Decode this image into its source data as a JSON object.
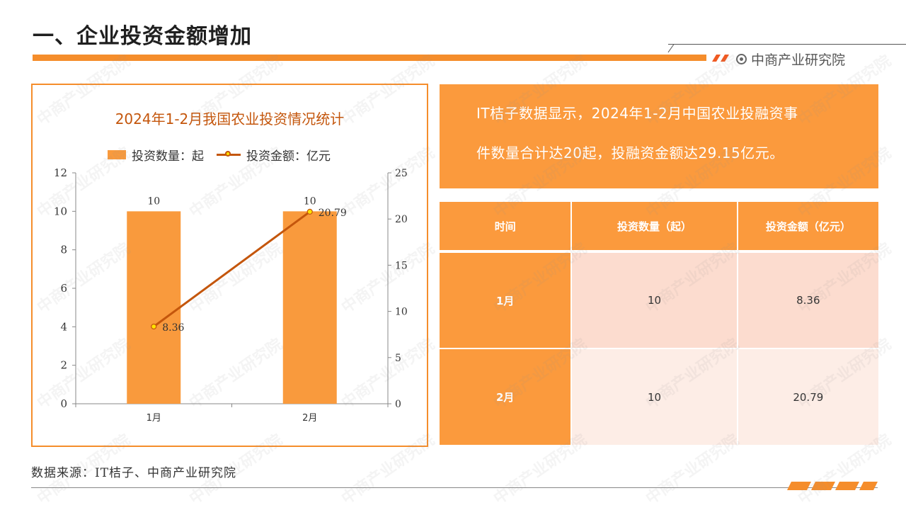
{
  "page": {
    "title": "一、企业投资金额增加",
    "brand": "中商产业研究院",
    "source": "数据来源：IT桔子、中商产业研究院"
  },
  "summary": {
    "line1": "IT桔子数据显示，2024年1-2月中国农业投融资事",
    "line2": "件数量合计达20起，投融资金额达29.15亿元。"
  },
  "table": {
    "headers": [
      "时间",
      "投资数量（起）",
      "投资金额（亿元）"
    ],
    "rows": [
      [
        "1月",
        "10",
        "8.36"
      ],
      [
        "2月",
        "10",
        "20.79"
      ]
    ]
  },
  "watermark": "中商产业研究院",
  "colors": {
    "accent": "#f58d2b",
    "bar": "#f99a3d",
    "line": "#c4560c",
    "marker": "#ffe400"
  },
  "chart_data": {
    "type": "bar+line",
    "title": "2024年1-2月我国农业投资情况统计",
    "categories": [
      "1月",
      "2月"
    ],
    "series": [
      {
        "name": "投资数量：起",
        "type": "bar",
        "axis": "left",
        "values": [
          10,
          10
        ],
        "labels": [
          "10",
          "10"
        ]
      },
      {
        "name": "投资金额：亿元",
        "type": "line",
        "axis": "right",
        "values": [
          8.36,
          20.79
        ],
        "labels": [
          "8.36",
          "20.79"
        ]
      }
    ],
    "left_axis": {
      "min": 0,
      "max": 12,
      "ticks": [
        0,
        2,
        4,
        6,
        8,
        10,
        12
      ]
    },
    "right_axis": {
      "min": 0,
      "max": 25,
      "ticks": [
        0,
        5,
        10,
        15,
        20,
        25
      ]
    },
    "legend": "top",
    "grid": false
  }
}
